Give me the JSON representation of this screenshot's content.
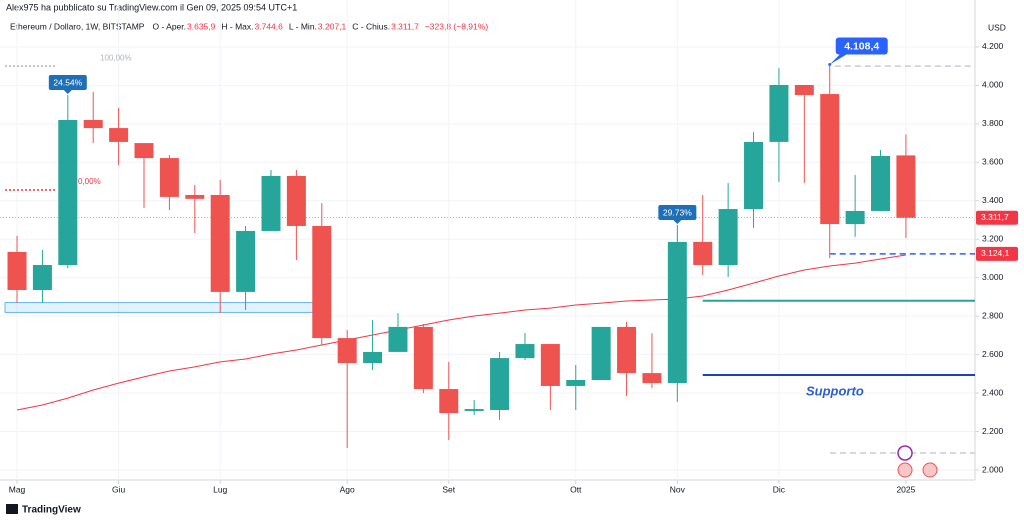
{
  "header": {
    "publisher": "Alex975 ha pubblicato su TradingView.com il Gen 09, 2025 09:54 UTC+1",
    "symbol": "Ethereum / Dollaro, 1W, BITSTAMP",
    "ohlc": [
      {
        "label": "O - Aper.",
        "value": "3.635,9"
      },
      {
        "label": "H - Max.",
        "value": "3.744,6"
      },
      {
        "label": "L - Min.",
        "value": "3.207,1"
      },
      {
        "label": "C - Chius.",
        "value": "3.311,7"
      }
    ],
    "change": "−323,8 (−8,91%)"
  },
  "footer": {
    "brand": "TradingView"
  },
  "chart_data": {
    "type": "candlestick",
    "currency": "USD",
    "up_color": "#26a69a",
    "down_color": "#ef5350",
    "categories": [
      null,
      null,
      null,
      null,
      null,
      null,
      null,
      null,
      null,
      null,
      null,
      null,
      null,
      null,
      null,
      null,
      null,
      null,
      null,
      null,
      null,
      null,
      null,
      null,
      null,
      null,
      null,
      null,
      null,
      null,
      null,
      null,
      null,
      null,
      null,
      null
    ],
    "open": [
      3134,
      2936,
      3066,
      3820,
      3778,
      3700,
      3622,
      3430,
      3430,
      2926,
      3243,
      3529,
      3269,
      2686,
      2556,
      2614,
      2744,
      2421,
      2307,
      2312,
      2582,
      2655,
      2437,
      2468,
      2744,
      2504,
      2452,
      3186,
      3066,
      3357,
      3706,
      4002,
      3955,
      3279,
      3347,
      3635.9
    ],
    "high": [
      3217,
      3144,
      3950,
      3966,
      3882,
      3700,
      3638,
      3482,
      3508,
      3269,
      3560,
      3560,
      3388,
      2728,
      2780,
      2816,
      2760,
      2562,
      2364,
      2614,
      2712,
      2655,
      2546,
      2744,
      2770,
      2712,
      3274,
      3430,
      3492,
      3758,
      4090,
      4002,
      4108.4,
      3534,
      3664,
      3744.6
    ],
    "low": [
      2868,
      2868,
      3050,
      3700,
      3586,
      3362,
      3352,
      3232,
      2816,
      2832,
      3243,
      3092,
      2650,
      2114,
      2520,
      2614,
      2400,
      2156,
      2286,
      2260,
      2572,
      2312,
      2312,
      2468,
      2385,
      2426,
      2354,
      3014,
      3004,
      3258,
      3498,
      3492,
      3102,
      3212,
      3347,
      3207.1
    ],
    "close": [
      2936,
      3066,
      3820,
      3778,
      3706,
      3622,
      3420,
      3410,
      2926,
      3243,
      3529,
      3269,
      2686,
      2556,
      2614,
      2744,
      2421,
      2296,
      2317,
      2582,
      2655,
      2437,
      2468,
      2744,
      2504,
      2452,
      3186,
      3066,
      3357,
      3706,
      4002,
      3950,
      3279,
      3347,
      3633,
      3311.7
    ],
    "moving_average": {
      "color": "#f23645",
      "values": [
        2312,
        2338,
        2374,
        2416,
        2452,
        2484,
        2515,
        2536,
        2562,
        2577,
        2603,
        2624,
        2650,
        2676,
        2702,
        2728,
        2754,
        2780,
        2801,
        2816,
        2832,
        2842,
        2858,
        2868,
        2879,
        2884,
        2889,
        2905,
        2936,
        2972,
        3009,
        3040,
        3061,
        3076,
        3097,
        3118
      ]
    },
    "xlim": [
      -0.67,
      37.72
    ],
    "xticks": [
      {
        "value": 0,
        "label": "Mag"
      },
      {
        "value": 4,
        "label": "Giu"
      },
      {
        "value": 8,
        "label": "Lug"
      },
      {
        "value": 13,
        "label": "Ago"
      },
      {
        "value": 17,
        "label": "Set"
      },
      {
        "value": 22,
        "label": "Ott"
      },
      {
        "value": 26,
        "label": "Nov"
      },
      {
        "value": 30,
        "label": "Dic"
      },
      {
        "value": 35,
        "label": "2025"
      }
    ],
    "ylim": [
      1948,
      4392
    ],
    "yticks": [
      {
        "value": 2000,
        "label": "2.000"
      },
      {
        "value": 2200,
        "label": "2.200"
      },
      {
        "value": 2400,
        "label": "2.400"
      },
      {
        "value": 2600,
        "label": "2.600"
      },
      {
        "value": 2800,
        "label": "2.800"
      },
      {
        "value": 3000,
        "label": "3.000"
      },
      {
        "value": 3200,
        "label": "3.200"
      },
      {
        "value": 3400,
        "label": "3.400"
      },
      {
        "value": 3600,
        "label": "3.600"
      },
      {
        "value": 3800,
        "label": "3.800"
      },
      {
        "value": 4000,
        "label": "4.000"
      },
      {
        "value": 4200,
        "label": "4.200"
      }
    ],
    "grid": true,
    "price_labels": [
      {
        "value": 3311.7,
        "label": "3.311,7",
        "color": "#f23645"
      },
      {
        "value": 3124.1,
        "label": "3.124,1",
        "color": "#f23645"
      }
    ],
    "callouts": [
      {
        "index": 2,
        "value": 24.54,
        "label": "24.54%",
        "color": "#1e6fb8"
      },
      {
        "index": 26,
        "value": 29.73,
        "label": "29.73%",
        "color": "#1e6fb8"
      },
      {
        "index": 32,
        "value": 4108.4,
        "label": "4.108,4",
        "color": "#2962ff"
      }
    ],
    "fib_levels": [
      {
        "value": 4100,
        "label": "100,00%",
        "color": "#b2b5be"
      },
      {
        "value": 3456,
        "label": "0,00%",
        "color": "#f23645"
      }
    ],
    "zone": {
      "values": [
        2820,
        2870
      ],
      "color": "#2196f3"
    },
    "levels": [
      {
        "value": 2880,
        "color": "#26a69a"
      },
      {
        "value": 2494,
        "color": "#1e3fbf",
        "label": "Supporto"
      }
    ]
  }
}
